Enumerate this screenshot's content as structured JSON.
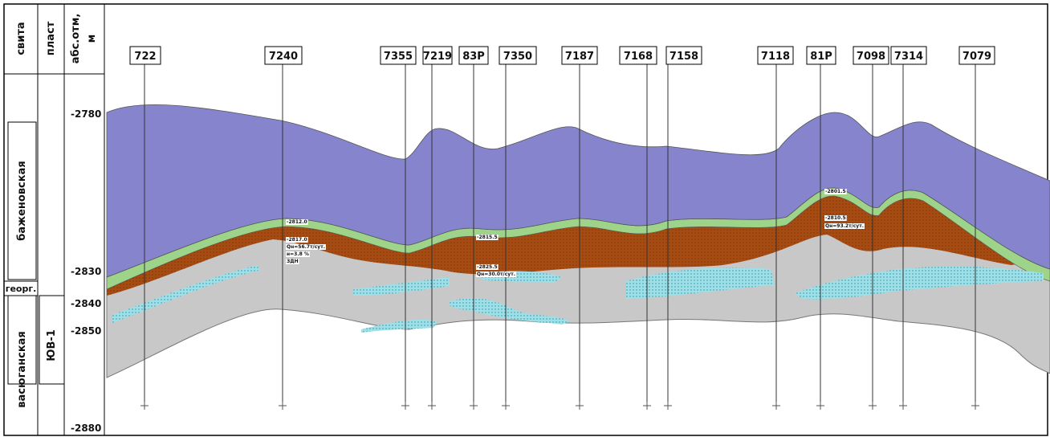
{
  "header": {
    "suite": "свита",
    "layer": "пласт",
    "depth": "абс.отм,",
    "depth_unit": "м"
  },
  "formations": [
    "баженовская",
    "георг.",
    "васюганская"
  ],
  "layer": "ЮВ-1",
  "depths": [
    "-2780",
    "-2830",
    "-2840",
    "-2850",
    "-2880"
  ],
  "wells": [
    "722",
    "7240",
    "7355",
    "7219",
    "83Р",
    "7350",
    "7187",
    "7168",
    "7158",
    "7118",
    "81Р",
    "7098",
    "7314",
    "7079"
  ],
  "annotations": [
    "-2812.0",
    "-2817.0",
    "Qн=56.7т/сут.",
    "н=3.8 %",
    "ЗДН",
    "-2815.5",
    "-2825.5",
    "Qн=30.0т/сут.",
    "-2801.5",
    "-2810.5",
    "Qн=93.2т/сут."
  ]
}
